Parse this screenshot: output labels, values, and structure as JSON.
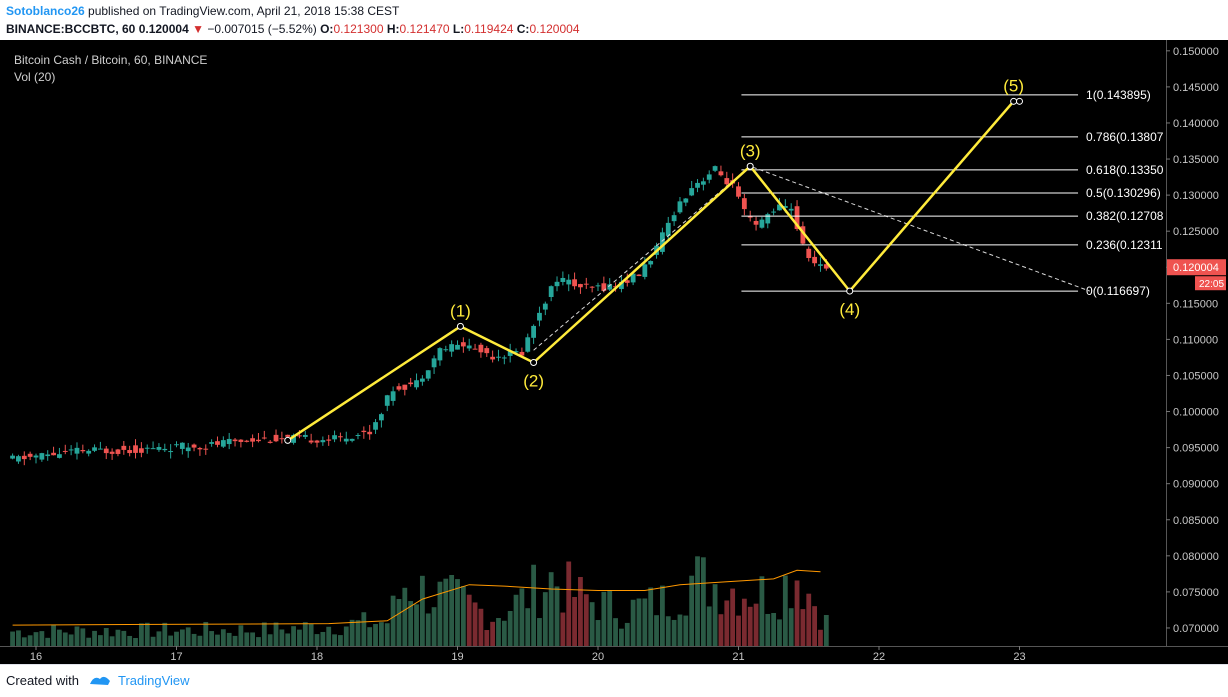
{
  "header": {
    "author": "Sotoblanco26",
    "published": "published on TradingView.com, April 21, 2018 15:38 CEST",
    "symbol": "BINANCE:BCCBTC, 60",
    "last": "0.120004",
    "change": "−0.007015 (−5.52%)",
    "o_label": "O:",
    "o_value": "0.121300",
    "h_label": "H:",
    "h_value": "0.121470",
    "l_label": "L:",
    "l_value": "0.119424",
    "c_label": "C:",
    "c_value": "0.120004"
  },
  "footer": {
    "created_with": "Created with",
    "brand": "TradingView"
  },
  "chart_data": {
    "type": "candlestick",
    "title": "Bitcoin Cash / Bitcoin, 60, BINANCE",
    "volume_label": "Vol (20)",
    "y_ticks": [
      "0.070000",
      "0.075000",
      "0.080000",
      "0.085000",
      "0.090000",
      "0.095000",
      "0.100000",
      "0.105000",
      "0.110000",
      "0.115000",
      "0.120000",
      "0.125000",
      "0.130000",
      "0.135000",
      "0.140000",
      "0.145000",
      "0.150000"
    ],
    "ylim": [
      0.0675,
      0.1515
    ],
    "x_ticks": [
      {
        "label": "16",
        "t": 0
      },
      {
        "label": "17",
        "t": 24
      },
      {
        "label": "18",
        "t": 48
      },
      {
        "label": "19",
        "t": 72
      },
      {
        "label": "20",
        "t": 96
      },
      {
        "label": "21",
        "t": 120
      },
      {
        "label": "22",
        "t": 144
      },
      {
        "label": "23",
        "t": 168
      }
    ],
    "x_unit": "hours since April 16 00:00",
    "price_path": [
      [
        -4,
        0.0933
      ],
      [
        8,
        0.0945
      ],
      [
        20,
        0.0948
      ],
      [
        30,
        0.0953
      ],
      [
        38,
        0.0962
      ],
      [
        52,
        0.0962
      ],
      [
        58,
        0.0972
      ],
      [
        60,
        0.1002
      ],
      [
        62,
        0.1032
      ],
      [
        66,
        0.104
      ],
      [
        70,
        0.1086
      ],
      [
        74,
        0.1093
      ],
      [
        79,
        0.1078
      ],
      [
        84,
        0.1082
      ],
      [
        87,
        0.114
      ],
      [
        90,
        0.1185
      ],
      [
        95,
        0.117
      ],
      [
        100,
        0.1175
      ],
      [
        104,
        0.119
      ],
      [
        107,
        0.1225
      ],
      [
        110,
        0.1278
      ],
      [
        113,
        0.1312
      ],
      [
        117,
        0.1335
      ],
      [
        120,
        0.1312
      ],
      [
        122,
        0.1275
      ],
      [
        124,
        0.1255
      ],
      [
        127,
        0.1282
      ],
      [
        130,
        0.1283
      ],
      [
        132,
        0.1228
      ],
      [
        134,
        0.1205
      ],
      [
        135,
        0.12
      ]
    ],
    "volume_profile": [
      [
        -4,
        0.0702
      ],
      [
        40,
        0.0705
      ],
      [
        60,
        0.072
      ],
      [
        63,
        0.079
      ],
      [
        68,
        0.077
      ],
      [
        72,
        0.076
      ],
      [
        78,
        0.073
      ],
      [
        83,
        0.076
      ],
      [
        88,
        0.08
      ],
      [
        92,
        0.077
      ],
      [
        100,
        0.074
      ],
      [
        108,
        0.076
      ],
      [
        112,
        0.08
      ],
      [
        120,
        0.078
      ],
      [
        126,
        0.077
      ],
      [
        130,
        0.081
      ],
      [
        135,
        0.072
      ]
    ],
    "volume_ma": [
      [
        -4,
        0.0704
      ],
      [
        50,
        0.0706
      ],
      [
        60,
        0.071
      ],
      [
        66,
        0.074
      ],
      [
        74,
        0.076
      ],
      [
        80,
        0.0758
      ],
      [
        88,
        0.0754
      ],
      [
        96,
        0.0752
      ],
      [
        104,
        0.0752
      ],
      [
        110,
        0.076
      ],
      [
        118,
        0.0764
      ],
      [
        126,
        0.0768
      ],
      [
        130,
        0.078
      ],
      [
        134,
        0.0778
      ]
    ],
    "elliott_wave": [
      {
        "label": "",
        "t": 43,
        "price": 0.096
      },
      {
        "label": "(1)",
        "t": 72.5,
        "price": 0.1118
      },
      {
        "label": "(2)",
        "t": 85,
        "price": 0.1068
      },
      {
        "label": "(3)",
        "t": 122,
        "price": 0.134
      },
      {
        "label": "(4)",
        "t": 139,
        "price": 0.116697
      },
      {
        "label": "(5)",
        "t": 167,
        "price": 0.143
      },
      {
        "label": "",
        "t": 168,
        "price": 0.143
      }
    ],
    "trendline": [
      {
        "t": 85,
        "price": 0.1085
      },
      {
        "t": 122,
        "price": 0.134
      },
      {
        "t": 180,
        "price": 0.1167
      }
    ],
    "fibonacci": [
      {
        "label": "1(0.143895)",
        "price": 0.143895
      },
      {
        "label": "0.786(0.13807",
        "price": 0.13807
      },
      {
        "label": "0.618(0.13350",
        "price": 0.1335
      },
      {
        "label": "0.5(0.130296)",
        "price": 0.130296
      },
      {
        "label": "0.382(0.12708",
        "price": 0.12708
      },
      {
        "label": "0.236(0.12311",
        "price": 0.12311
      },
      {
        "label": "0(0.116697)",
        "price": 0.116697
      }
    ],
    "last_price_label": "0.120004",
    "countdown_label": "22:05",
    "colors": {
      "background": "#000000",
      "up": "#26a69a",
      "down": "#ef5350",
      "up_volume": "#2a5a45",
      "down_volume": "#7a2a30",
      "wave": "#ffeb3b",
      "fib": "#ffffff",
      "volume_ma": "#ff9800",
      "axis_text": "#c8c8c8",
      "last_price_bg": "#ef5350"
    }
  }
}
